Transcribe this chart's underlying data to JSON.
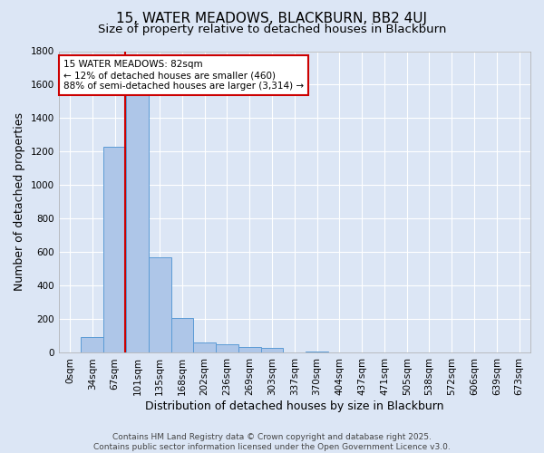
{
  "title": "15, WATER MEADOWS, BLACKBURN, BB2 4UJ",
  "subtitle": "Size of property relative to detached houses in Blackburn",
  "xlabel": "Distribution of detached houses by size in Blackburn",
  "ylabel": "Number of detached properties",
  "bin_labels": [
    "0sqm",
    "34sqm",
    "67sqm",
    "101sqm",
    "135sqm",
    "168sqm",
    "202sqm",
    "236sqm",
    "269sqm",
    "303sqm",
    "337sqm",
    "370sqm",
    "404sqm",
    "437sqm",
    "471sqm",
    "505sqm",
    "538sqm",
    "572sqm",
    "606sqm",
    "639sqm",
    "673sqm"
  ],
  "bin_counts": [
    0,
    97,
    1232,
    1540,
    568,
    210,
    63,
    49,
    37,
    27,
    0,
    8,
    0,
    5,
    0,
    0,
    0,
    0,
    0,
    0,
    0
  ],
  "bar_color": "#aec6e8",
  "bar_edge_color": "#5b9bd5",
  "background_color": "#dce6f5",
  "grid_color": "#ffffff",
  "vline_x": 2.45,
  "vline_color": "#cc0000",
  "annotation_text": "15 WATER MEADOWS: 82sqm\n← 12% of detached houses are smaller (460)\n88% of semi-detached houses are larger (3,314) →",
  "annotation_box_color": "#ffffff",
  "annotation_box_edge": "#cc0000",
  "ylim": [
    0,
    1800
  ],
  "yticks": [
    0,
    200,
    400,
    600,
    800,
    1000,
    1200,
    1400,
    1600,
    1800
  ],
  "footer_text": "Contains HM Land Registry data © Crown copyright and database right 2025.\nContains public sector information licensed under the Open Government Licence v3.0.",
  "title_fontsize": 11,
  "subtitle_fontsize": 9.5,
  "label_fontsize": 9,
  "tick_fontsize": 7.5,
  "footer_fontsize": 6.5
}
